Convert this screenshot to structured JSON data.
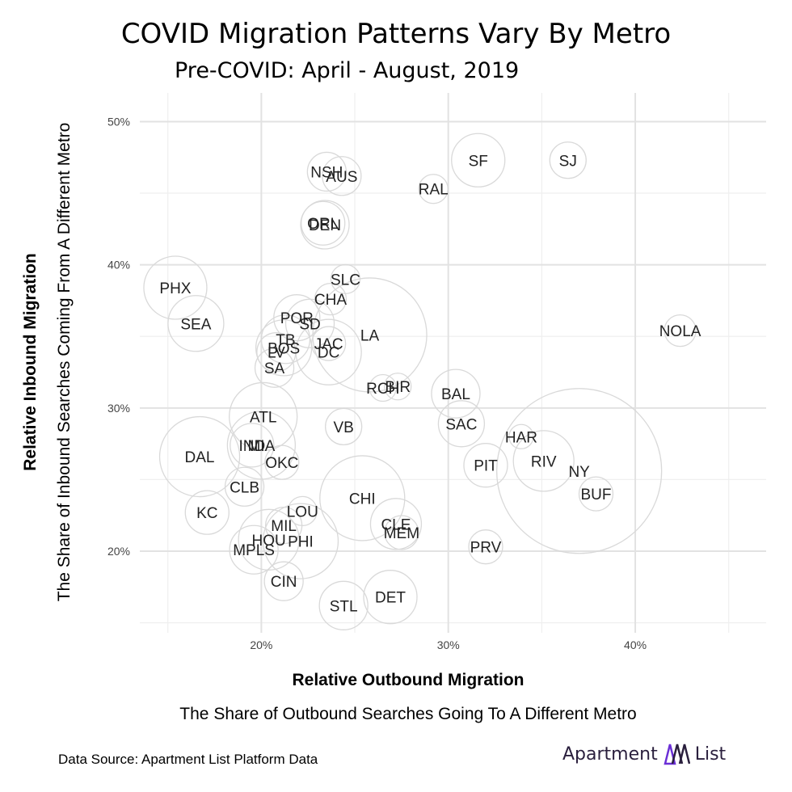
{
  "header": {
    "title": "COVID Migration Patterns Vary By Metro",
    "subtitle": "Pre-COVID: April - August, 2019"
  },
  "footer": {
    "source": "Data Source: Apartment List Platform Data",
    "logo_text_left": "Apartment",
    "logo_text_right": "List"
  },
  "chart_data": {
    "type": "scatter",
    "title": "COVID Migration Patterns Vary By Metro",
    "subtitle": "Pre-COVID: April - August, 2019",
    "xlabel": "Relative Outbound Migration",
    "xsublabel": "The Share of Outbound Searches Going To A Different Metro",
    "ylabel": "Relative Inbound Migration",
    "ysublabel": "The Share of Inbound Searches Coming From A Different Metro",
    "xlim": [
      13.5,
      47
    ],
    "ylim": [
      14.3,
      52
    ],
    "xticks": [
      20,
      30,
      40
    ],
    "yticks": [
      20,
      30,
      40,
      50
    ],
    "xtick_labels": [
      "20%",
      "30%",
      "40%"
    ],
    "ytick_labels": [
      "20%",
      "30%",
      "40%",
      "50%"
    ],
    "grid": true,
    "bubble_color": "#d9d9d9",
    "points": [
      {
        "label": "NSH",
        "x": 23.5,
        "y": 46.5,
        "size": 1.6
      },
      {
        "label": "AUS",
        "x": 24.3,
        "y": 46.2,
        "size": 1.6
      },
      {
        "label": "RAL",
        "x": 29.2,
        "y": 45.3,
        "size": 1.2
      },
      {
        "label": "SF",
        "x": 31.6,
        "y": 47.3,
        "size": 2.2
      },
      {
        "label": "SJ",
        "x": 36.4,
        "y": 47.3,
        "size": 1.5
      },
      {
        "label": "ORL",
        "x": 23.3,
        "y": 42.9,
        "size": 1.8
      },
      {
        "label": "DEN",
        "x": 23.4,
        "y": 42.8,
        "size": 2.0
      },
      {
        "label": "PHX",
        "x": 15.4,
        "y": 38.4,
        "size": 2.6
      },
      {
        "label": "SEA",
        "x": 16.5,
        "y": 35.9,
        "size": 2.3
      },
      {
        "label": "SLC",
        "x": 24.5,
        "y": 39.0,
        "size": 1.2
      },
      {
        "label": "CHA",
        "x": 23.7,
        "y": 37.6,
        "size": 1.3
      },
      {
        "label": "POR",
        "x": 21.9,
        "y": 36.3,
        "size": 1.9
      },
      {
        "label": "SD",
        "x": 22.6,
        "y": 35.9,
        "size": 2.0
      },
      {
        "label": "LA",
        "x": 25.8,
        "y": 35.1,
        "size": 4.7
      },
      {
        "label": "NOLA",
        "x": 42.4,
        "y": 35.4,
        "size": 1.3
      },
      {
        "label": "TB",
        "x": 21.3,
        "y": 34.8,
        "size": 2.0
      },
      {
        "label": "BOS",
        "x": 21.2,
        "y": 34.2,
        "size": 2.3
      },
      {
        "label": "JAC",
        "x": 23.6,
        "y": 34.5,
        "size": 1.4
      },
      {
        "label": "LV",
        "x": 20.8,
        "y": 33.9,
        "size": 1.6
      },
      {
        "label": "DC",
        "x": 23.6,
        "y": 33.9,
        "size": 2.7
      },
      {
        "label": "SA",
        "x": 20.7,
        "y": 32.8,
        "size": 1.6
      },
      {
        "label": "RCH",
        "x": 26.5,
        "y": 31.4,
        "size": 1.1
      },
      {
        "label": "BIR",
        "x": 27.3,
        "y": 31.5,
        "size": 1.1
      },
      {
        "label": "BAL",
        "x": 30.4,
        "y": 31.0,
        "size": 2.0
      },
      {
        "label": "ATL",
        "x": 20.1,
        "y": 29.4,
        "size": 2.8
      },
      {
        "label": "VB",
        "x": 24.4,
        "y": 28.7,
        "size": 1.5
      },
      {
        "label": "SAC",
        "x": 30.7,
        "y": 28.9,
        "size": 1.9
      },
      {
        "label": "HAR",
        "x": 33.9,
        "y": 28.0,
        "size": 1.0
      },
      {
        "label": "DAL",
        "x": 16.7,
        "y": 26.6,
        "size": 3.3
      },
      {
        "label": "IND",
        "x": 19.5,
        "y": 27.4,
        "size": 1.8
      },
      {
        "label": "MIA",
        "x": 20.0,
        "y": 27.4,
        "size": 2.8
      },
      {
        "label": "OKC",
        "x": 21.1,
        "y": 26.2,
        "size": 1.4
      },
      {
        "label": "PIT",
        "x": 32.0,
        "y": 26.0,
        "size": 1.8
      },
      {
        "label": "RIV",
        "x": 35.1,
        "y": 26.3,
        "size": 2.5
      },
      {
        "label": "NY",
        "x": 37.0,
        "y": 25.6,
        "size": 6.8
      },
      {
        "label": "BUF",
        "x": 37.9,
        "y": 24.0,
        "size": 1.4
      },
      {
        "label": "CLB",
        "x": 19.1,
        "y": 24.5,
        "size": 1.6
      },
      {
        "label": "CHI",
        "x": 25.4,
        "y": 23.7,
        "size": 3.5
      },
      {
        "label": "KC",
        "x": 17.1,
        "y": 22.7,
        "size": 1.8
      },
      {
        "label": "LOU",
        "x": 22.2,
        "y": 22.8,
        "size": 1.2
      },
      {
        "label": "MIL",
        "x": 21.2,
        "y": 21.8,
        "size": 1.5
      },
      {
        "label": "CLE",
        "x": 27.2,
        "y": 21.9,
        "size": 2.1
      },
      {
        "label": "MEM",
        "x": 27.5,
        "y": 21.3,
        "size": 1.4
      },
      {
        "label": "HOU",
        "x": 20.4,
        "y": 20.8,
        "size": 2.5
      },
      {
        "label": "PHI",
        "x": 22.1,
        "y": 20.7,
        "size": 3.1
      },
      {
        "label": "MPLS",
        "x": 19.6,
        "y": 20.1,
        "size": 2.0
      },
      {
        "label": "PRV",
        "x": 32.0,
        "y": 20.3,
        "size": 1.4
      },
      {
        "label": "CIN",
        "x": 21.2,
        "y": 17.9,
        "size": 1.6
      },
      {
        "label": "STL",
        "x": 24.4,
        "y": 16.2,
        "size": 2.0
      },
      {
        "label": "DET",
        "x": 26.9,
        "y": 16.8,
        "size": 2.2
      }
    ]
  }
}
